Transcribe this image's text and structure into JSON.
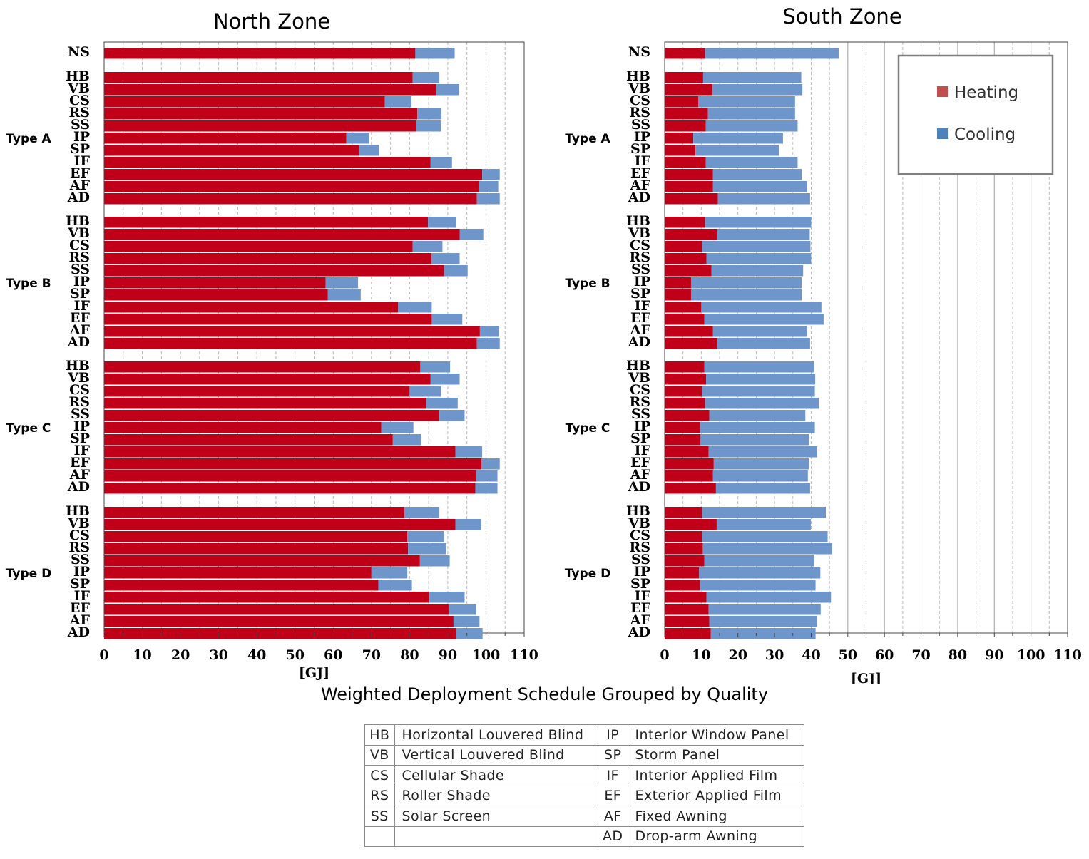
{
  "chart_data": [
    {
      "type": "bar",
      "orientation": "horizontal",
      "stacked": true,
      "title": "North Zone",
      "xlabel": "[GJ]",
      "xlim": [
        0,
        110
      ],
      "xticks": [
        0,
        10,
        20,
        30,
        40,
        50,
        60,
        70,
        80,
        90,
        100,
        110
      ],
      "grid": true,
      "groups": [
        {
          "name": "",
          "categories": [
            "NS"
          ],
          "heating": [
            81.5
          ],
          "cooling": [
            10.3
          ]
        },
        {
          "name": "Type A",
          "categories": [
            "HB",
            "VB",
            "CS",
            "RS",
            "SS",
            "IP",
            "SP",
            "IF",
            "EF",
            "AF",
            "AD"
          ],
          "heating": [
            80.8,
            87.0,
            73.5,
            82.0,
            81.8,
            63.4,
            66.8,
            85.5,
            99.0,
            98.2,
            97.6
          ],
          "cooling": [
            7.0,
            6.0,
            7.0,
            6.3,
            6.4,
            6.0,
            5.2,
            5.6,
            4.6,
            5.0,
            6.0
          ]
        },
        {
          "name": "Type B",
          "categories": [
            "HB",
            "VB",
            "CS",
            "RS",
            "SS",
            "IP",
            "SP",
            "IF",
            "EF",
            "AF",
            "AD"
          ],
          "heating": [
            84.8,
            93.1,
            80.8,
            85.7,
            89.0,
            58.0,
            58.6,
            77.0,
            85.8,
            98.4,
            97.6
          ],
          "cooling": [
            7.4,
            6.2,
            7.8,
            7.4,
            6.2,
            8.5,
            8.6,
            8.8,
            8.0,
            5.0,
            6.0
          ]
        },
        {
          "name": "Type C",
          "categories": [
            "HB",
            "VB",
            "CS",
            "RS",
            "SS",
            "IP",
            "SP",
            "IF",
            "EF",
            "AF",
            "AD"
          ],
          "heating": [
            82.8,
            85.5,
            80.0,
            84.4,
            87.8,
            72.6,
            75.6,
            92.0,
            98.8,
            97.4,
            97.2
          ],
          "cooling": [
            7.8,
            7.6,
            8.2,
            8.2,
            6.6,
            8.4,
            7.4,
            7.0,
            4.8,
            5.6,
            5.8
          ]
        },
        {
          "name": "Type D",
          "categories": [
            "HB",
            "VB",
            "CS",
            "RS",
            "SS",
            "IP",
            "SP",
            "IF",
            "EF",
            "AF",
            "AD"
          ],
          "heating": [
            78.6,
            92.0,
            79.4,
            79.6,
            82.7,
            70.0,
            71.8,
            85.2,
            90.2,
            91.5,
            92.2
          ],
          "cooling": [
            9.2,
            6.7,
            9.6,
            10.0,
            7.8,
            9.4,
            8.8,
            9.2,
            7.2,
            6.8,
            6.9
          ]
        }
      ]
    },
    {
      "type": "bar",
      "orientation": "horizontal",
      "stacked": true,
      "title": "South Zone",
      "xlabel": "[GJ]",
      "xlim": [
        0,
        110
      ],
      "xticks": [
        0,
        10,
        20,
        30,
        40,
        50,
        60,
        70,
        80,
        90,
        100,
        110
      ],
      "grid": true,
      "legend": {
        "position": "top-right",
        "entries": [
          "Heating",
          "Cooling"
        ]
      },
      "groups": [
        {
          "name": "",
          "categories": [
            "NS"
          ],
          "heating": [
            11.0
          ],
          "cooling": [
            36.5
          ]
        },
        {
          "name": "Type A",
          "categories": [
            "HB",
            "VB",
            "CS",
            "RS",
            "SS",
            "IP",
            "SP",
            "IF",
            "EF",
            "AF",
            "AD"
          ],
          "heating": [
            10.5,
            13.0,
            9.2,
            11.8,
            11.2,
            7.8,
            8.4,
            11.2,
            13.2,
            13.2,
            14.5
          ],
          "cooling": [
            26.8,
            24.6,
            26.4,
            23.8,
            25.1,
            24.5,
            22.8,
            25.1,
            24.2,
            25.7,
            25.2
          ]
        },
        {
          "name": "Type B",
          "categories": [
            "HB",
            "VB",
            "CS",
            "RS",
            "SS",
            "IP",
            "SP",
            "IF",
            "EF",
            "AF",
            "AD"
          ],
          "heating": [
            11.0,
            14.4,
            10.2,
            11.4,
            12.8,
            7.2,
            7.2,
            10.0,
            10.8,
            13.2,
            14.4
          ],
          "cooling": [
            29.0,
            25.2,
            29.6,
            28.6,
            25.0,
            30.2,
            30.2,
            32.8,
            32.6,
            25.6,
            25.3
          ]
        },
        {
          "name": "Type C",
          "categories": [
            "HB",
            "VB",
            "CS",
            "RS",
            "SS",
            "IP",
            "SP",
            "IF",
            "EF",
            "AF",
            "AD"
          ],
          "heating": [
            10.8,
            11.3,
            10.2,
            11.0,
            12.2,
            9.6,
            9.8,
            12.0,
            13.4,
            13.2,
            14.0
          ],
          "cooling": [
            30.0,
            29.8,
            30.8,
            31.1,
            26.2,
            31.4,
            29.6,
            29.6,
            26.0,
            25.9,
            25.7
          ]
        },
        {
          "name": "Type D",
          "categories": [
            "HB",
            "VB",
            "CS",
            "RS",
            "SS",
            "IP",
            "SP",
            "IF",
            "EF",
            "AF",
            "AD"
          ],
          "heating": [
            10.2,
            14.2,
            10.2,
            10.4,
            10.8,
            9.4,
            9.6,
            11.4,
            12.0,
            12.2,
            12.6
          ],
          "cooling": [
            33.8,
            25.7,
            34.3,
            35.3,
            30.0,
            33.1,
            31.6,
            34.0,
            30.6,
            29.4,
            28.6
          ]
        }
      ]
    }
  ],
  "colors": {
    "heating": "#c00018",
    "cooling": "#6f96cb",
    "heating_legend": "#c0504d",
    "cooling_legend": "#4f81bd"
  },
  "legend": {
    "heating": "Heating",
    "cooling": "Cooling"
  },
  "caption": "Weighted Deployment Schedule Grouped by Quality",
  "abbreviations": [
    [
      "HB",
      "Horizontal Louvered Blind",
      "IP",
      "Interior Window Panel"
    ],
    [
      "VB",
      "Vertical Louvered Blind",
      "SP",
      "Storm Panel"
    ],
    [
      "CS",
      "Cellular Shade",
      "IF",
      "Interior Applied Film"
    ],
    [
      "RS",
      "Roller Shade",
      "EF",
      "Exterior Applied Film"
    ],
    [
      "SS",
      "Solar Screen",
      "AF",
      "Fixed Awning"
    ],
    [
      "",
      "",
      "AD",
      "Drop-arm Awning"
    ]
  ]
}
